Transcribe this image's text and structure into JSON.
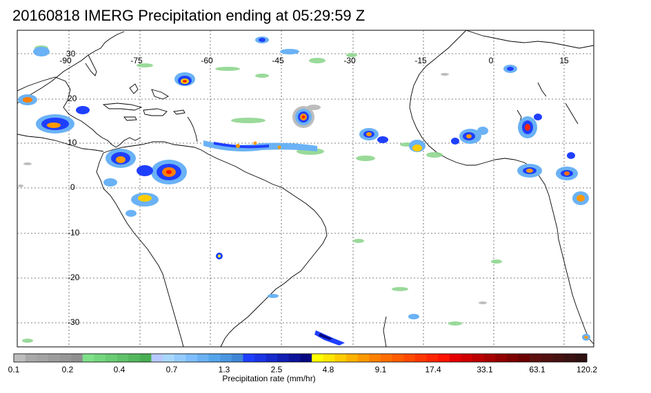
{
  "title": "20160818 IMERG Precipitation ending at 05:29:59 Z",
  "map": {
    "lon_labels": [
      "-90",
      "-75",
      "-60",
      "-45",
      "-30",
      "-15",
      "0",
      "15"
    ],
    "lat_labels": [
      "30",
      "20",
      "10",
      "0",
      "-10",
      "-20",
      "-30"
    ]
  },
  "colorbar": {
    "title": "Precipitation rate (mm/hr)",
    "labels": [
      "0.1",
      "0.2",
      "0.4",
      "0.7",
      "1.3",
      "2.5",
      "4.8",
      "9.1",
      "17.4",
      "33.1",
      "63.1",
      "120.2"
    ],
    "colors": [
      "#bdbdbd",
      "#a9a9a9",
      "#a3a3a3",
      "#9c9c9c",
      "#979797",
      "#8f8f8f",
      "#7fe08a",
      "#74d67f",
      "#6acc74",
      "#5fc26a",
      "#54b85f",
      "#4aae55",
      "#b8c9ff",
      "#a9d8ff",
      "#94ccff",
      "#7fbfff",
      "#6ab2f5",
      "#55a5eb",
      "#4a96e0",
      "#3f87d6",
      "#1f3fff",
      "#1a34e6",
      "#1529cc",
      "#101eb3",
      "#0b1399",
      "#060880",
      "#ffff00",
      "#ffe600",
      "#ffcc00",
      "#ffb300",
      "#ff9900",
      "#ff8000",
      "#ff6e00",
      "#ff5c00",
      "#ff4a00",
      "#ff3700",
      "#ff2500",
      "#ff1300",
      "#e60000",
      "#d10000",
      "#bc0000",
      "#a70000",
      "#920000",
      "#7d0000",
      "#6b0000",
      "#5e0f0f",
      "#521010",
      "#461111",
      "#3a1111",
      "#2e1111"
    ]
  }
}
